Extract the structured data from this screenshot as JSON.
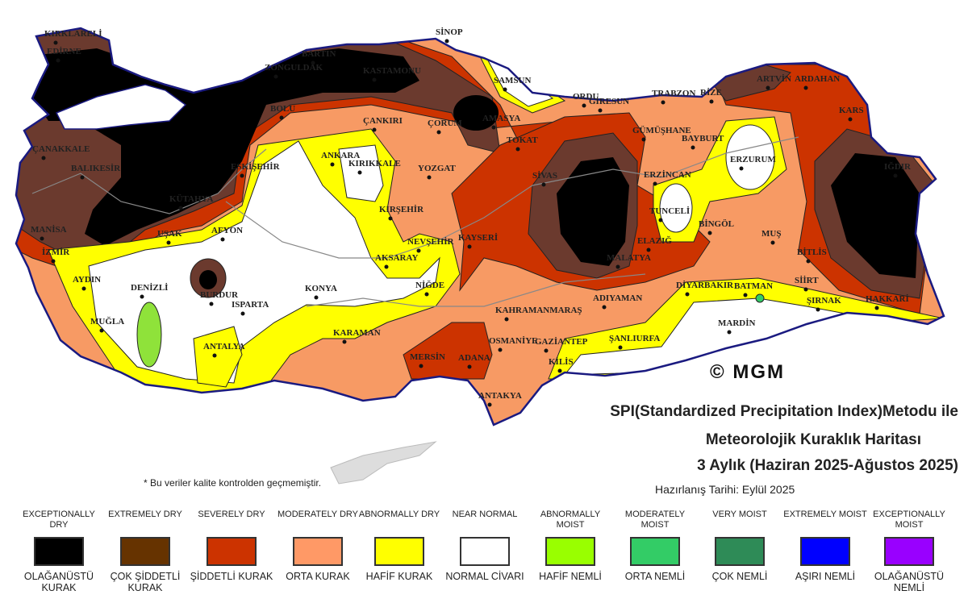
{
  "map": {
    "credit": "© MGM",
    "cities": [
      "KIRKLARELİ",
      "EDİRNE",
      "ÇANAKKALE",
      "BALIKESİR",
      "MANİSA",
      "İZMİR",
      "AYDIN",
      "MUĞLA",
      "DENİZLİ",
      "UŞAK",
      "AFYON",
      "BURDUR",
      "ISPARTA",
      "ANTALYA",
      "KONYA",
      "KARAMAN",
      "AKSARAY",
      "NİĞDE",
      "NEVŞEHİR",
      "KAYSERİ",
      "KIRŞEHİR",
      "KIRIKKALE",
      "ANKARA",
      "ÇANKIRI",
      "BOLU",
      "ZONGULDAK",
      "BARTIN",
      "KASTAMONU",
      "SİNOP",
      "SAMSUN",
      "ÇORUM",
      "AMASYA",
      "TOKAT",
      "YOZGAT",
      "SİVAS",
      "ORDU",
      "GİRESUN",
      "TRABZON",
      "RİZE",
      "ARTVİN",
      "ARDAHAN",
      "KARS",
      "GÜMÜŞHANE",
      "BAYBURT",
      "ERZURUM",
      "ERZİNCAN",
      "IĞDIR",
      "TUNCELİ",
      "BİNGÖL",
      "MUŞ",
      "BİTLİS",
      "ELAZIĞ",
      "MALATYA",
      "DİYARBAKIR",
      "BATMAN",
      "SİİRT",
      "ŞIRNAK",
      "HAKKARİ",
      "MARDİN",
      "ŞANLIURFA",
      "ADIYAMAN",
      "KAHRAMANMARAŞ",
      "OSMANİYE",
      "GAZİANTEP",
      "KİLİS",
      "ADANA",
      "MERSİN",
      "ANTAKYA",
      "KÜTAHYA",
      "ESKİŞEHİR"
    ]
  },
  "title": {
    "line1": "SPI(Standardized Precipitation Index)Metodu ile",
    "line2": "Meteorolojik Kuraklık Haritası",
    "line3": "3 Aylık (Haziran 2025-Ağustos 2025)",
    "prepared": "Hazırlanış Tarihi: Eylül 2025"
  },
  "note": "* Bu veriler kalite kontrolden geçmemiştir.",
  "legend": [
    {
      "en": "EXCEPTIONALLY DRY",
      "tr": "OLAĞANÜSTÜ KURAK",
      "color": "#000000"
    },
    {
      "en": "EXTREMELY DRY",
      "tr": "ÇOK ŞİDDETLİ KURAK",
      "color": "#663300"
    },
    {
      "en": "SEVERELY DRY",
      "tr": "ŞİDDETLİ KURAK",
      "color": "#cc3300"
    },
    {
      "en": "MODERATELY DRY",
      "tr": "ORTA KURAK",
      "color": "#ff9966"
    },
    {
      "en": "ABNORMALLY DRY",
      "tr": "HAFİF KURAK",
      "color": "#ffff00"
    },
    {
      "en": "NEAR NORMAL",
      "tr": "NORMAL CİVARI",
      "color": "#ffffff"
    },
    {
      "en": "ABNORMALLY MOIST",
      "tr": "HAFİF NEMLİ",
      "color": "#99ff00"
    },
    {
      "en": "MODERATELY MOIST",
      "tr": "ORTA NEMLİ",
      "color": "#33cc66"
    },
    {
      "en": "VERY MOIST",
      "tr": "ÇOK NEMLİ",
      "color": "#2e8b57"
    },
    {
      "en": "EXTREMELY MOIST",
      "tr": "AŞIRI NEMLİ",
      "color": "#0000ff"
    },
    {
      "en": "EXCEPTIONALLY MOIST",
      "tr": "OLAĞANÜSTÜ NEMLİ",
      "color": "#9900ff"
    }
  ]
}
